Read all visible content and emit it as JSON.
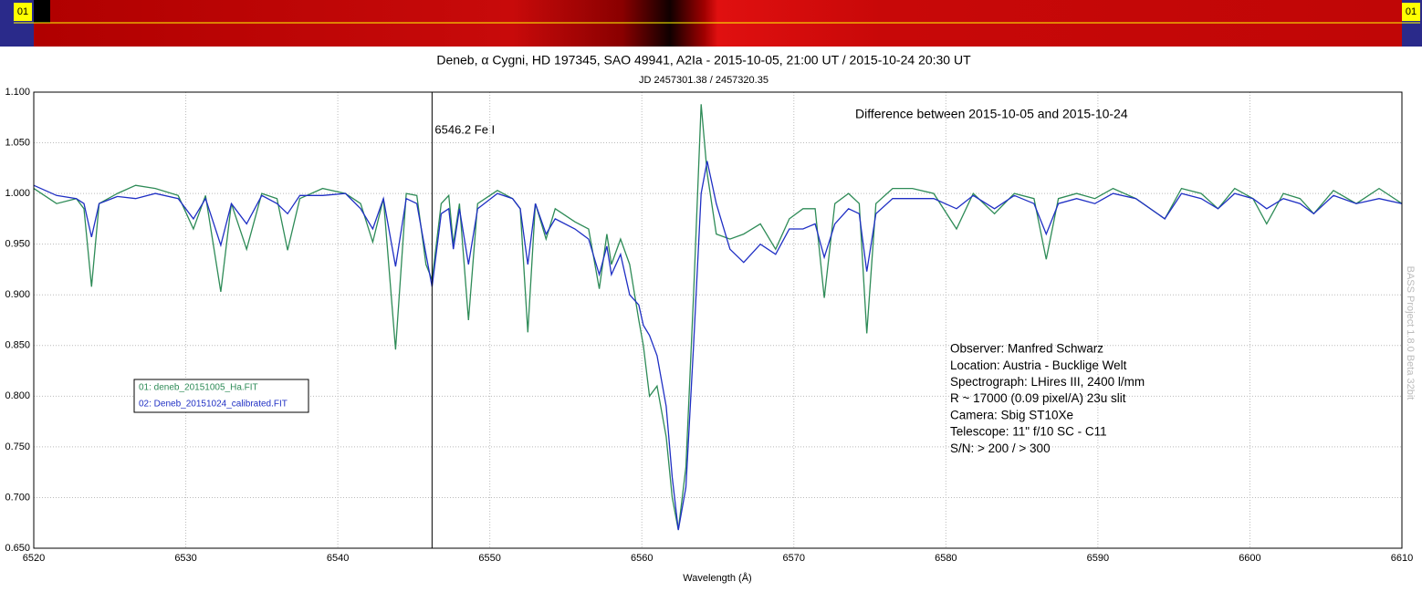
{
  "chart_data": {
    "type": "line",
    "title": "Deneb, α Cygni, HD 197345, SAO 49941, A2Ia - 2015-10-05, 21:00 UT / 2015-10-24 20:30 UT",
    "subtitle": "JD 2457301.38 / 2457320.35",
    "x_label": "Wavelength (Å)",
    "strip_labels": [
      "01",
      "01"
    ],
    "marker": {
      "x": 6546.2,
      "label": "6546.2 Fe I"
    },
    "annotation": "Difference between 2015-10-05 and 2015-10-24",
    "info_lines": [
      "Observer: Manfred Schwarz",
      "Location: Austria - Bucklige Welt",
      "Spectrograph: LHires III, 2400 l/mm",
      "R ~ 17000 (0.09 pixel/A) 23u slit",
      "Camera: Sbig ST10Xe",
      "Telescope: 11\" f/10 SC - C11",
      "S/N: > 200 / > 300"
    ],
    "watermark": "BASS Project 1.8.0 Beta 32bit",
    "grid": true,
    "xlim": [
      6520,
      6610
    ],
    "xticks": [
      6520,
      6530,
      6540,
      6550,
      6560,
      6570,
      6580,
      6590,
      6600,
      6610
    ],
    "ylim": [
      0.65,
      1.1
    ],
    "yticks": [
      {
        "value": 0.65,
        "label": "0.650"
      },
      {
        "value": 0.7,
        "label": "0.700"
      },
      {
        "value": 0.75,
        "label": "0.750"
      },
      {
        "value": 0.8,
        "label": "0.800"
      },
      {
        "value": 0.85,
        "label": "0.850"
      },
      {
        "value": 0.9,
        "label": "0.900"
      },
      {
        "value": 0.95,
        "label": "0.950"
      },
      {
        "value": 1.0,
        "label": "1.000"
      },
      {
        "value": 1.05,
        "label": "1.050"
      },
      {
        "value": 1.1,
        "label": "1.100"
      }
    ],
    "x": [
      6520.0,
      6521.5,
      6522.8,
      6523.3,
      6523.8,
      6524.3,
      6525.5,
      6526.7,
      6528.0,
      6529.5,
      6530.5,
      6531.3,
      6532.3,
      6533.0,
      6534.0,
      6535.0,
      6536.0,
      6536.7,
      6537.5,
      6539.0,
      6540.5,
      6541.5,
      6542.3,
      6543.0,
      6543.8,
      6544.5,
      6545.2,
      6545.8,
      6546.2,
      6546.8,
      6547.3,
      6547.6,
      6548.0,
      6548.6,
      6549.2,
      6550.5,
      6551.5,
      6552.0,
      6552.5,
      6553.0,
      6553.7,
      6554.3,
      6555.6,
      6556.5,
      6557.2,
      6557.7,
      6558.0,
      6558.6,
      6559.2,
      6559.8,
      6560.1,
      6560.5,
      6561.0,
      6561.6,
      6562.0,
      6562.4,
      6562.9,
      6563.4,
      6563.9,
      6564.3,
      6564.9,
      6565.8,
      6566.7,
      6567.8,
      6568.8,
      6569.7,
      6570.6,
      6571.4,
      6572.0,
      6572.7,
      6573.6,
      6574.3,
      6574.8,
      6575.4,
      6576.5,
      6577.8,
      6579.2,
      6580.7,
      6581.8,
      6583.2,
      6584.5,
      6585.8,
      6586.6,
      6587.4,
      6588.6,
      6589.8,
      6591.0,
      6592.5,
      6594.4,
      6595.5,
      6596.8,
      6597.9,
      6599.0,
      6600.2,
      6601.1,
      6602.2,
      6603.3,
      6604.2,
      6605.5,
      6607.0,
      6608.5,
      6610.0
    ],
    "series": [
      {
        "name": "01: deneb_20151005_Ha.FIT",
        "color": "#2e8b57",
        "values": [
          1.005,
          0.99,
          0.995,
          0.985,
          0.908,
          0.99,
          1.0,
          1.008,
          1.005,
          0.998,
          0.965,
          0.998,
          0.903,
          0.99,
          0.945,
          1.0,
          0.995,
          0.944,
          0.995,
          1.005,
          1.0,
          0.99,
          0.952,
          0.995,
          0.846,
          1.0,
          0.998,
          0.93,
          0.915,
          0.99,
          0.998,
          0.95,
          0.99,
          0.875,
          0.99,
          1.003,
          0.995,
          0.985,
          0.863,
          0.99,
          0.955,
          0.985,
          0.972,
          0.965,
          0.906,
          0.96,
          0.93,
          0.955,
          0.93,
          0.875,
          0.85,
          0.8,
          0.81,
          0.76,
          0.7,
          0.668,
          0.73,
          0.9,
          1.088,
          1.02,
          0.96,
          0.955,
          0.96,
          0.97,
          0.945,
          0.975,
          0.985,
          0.985,
          0.897,
          0.99,
          1.0,
          0.99,
          0.862,
          0.99,
          1.005,
          1.005,
          1.0,
          0.965,
          1.0,
          0.98,
          1.0,
          0.995,
          0.935,
          0.995,
          1.0,
          0.995,
          1.005,
          0.995,
          0.975,
          1.005,
          1.0,
          0.985,
          1.005,
          0.995,
          0.97,
          1.0,
          0.995,
          0.98,
          1.003,
          0.99,
          1.005,
          0.99
        ]
      },
      {
        "name": "02: Deneb_20151024_calibrated.FIT",
        "color": "#1f2fc4",
        "values": [
          1.008,
          0.998,
          0.995,
          0.99,
          0.957,
          0.99,
          0.997,
          0.995,
          1.0,
          0.995,
          0.975,
          0.995,
          0.949,
          0.99,
          0.97,
          0.998,
          0.99,
          0.98,
          0.998,
          0.998,
          1.0,
          0.985,
          0.965,
          0.995,
          0.928,
          0.995,
          0.99,
          0.94,
          0.908,
          0.98,
          0.985,
          0.945,
          0.985,
          0.93,
          0.985,
          1.0,
          0.995,
          0.985,
          0.93,
          0.99,
          0.96,
          0.975,
          0.965,
          0.955,
          0.92,
          0.948,
          0.92,
          0.94,
          0.9,
          0.89,
          0.87,
          0.86,
          0.84,
          0.79,
          0.72,
          0.668,
          0.71,
          0.85,
          1.0,
          1.032,
          0.99,
          0.945,
          0.932,
          0.95,
          0.94,
          0.965,
          0.965,
          0.97,
          0.937,
          0.97,
          0.985,
          0.98,
          0.923,
          0.98,
          0.995,
          0.995,
          0.995,
          0.985,
          0.998,
          0.985,
          0.998,
          0.99,
          0.96,
          0.99,
          0.995,
          0.99,
          1.0,
          0.995,
          0.975,
          1.0,
          0.995,
          0.985,
          1.0,
          0.995,
          0.985,
          0.995,
          0.99,
          0.98,
          0.998,
          0.99,
          0.995,
          0.99
        ]
      }
    ]
  }
}
